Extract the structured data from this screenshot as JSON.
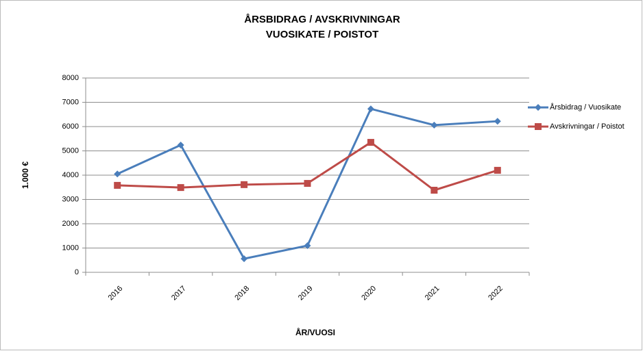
{
  "chart_data": {
    "type": "line",
    "title": [
      "ÅRSBIDRAG / AVSKRIVNINGAR",
      "VUOSIKATE / POISTOT"
    ],
    "x_label": "ÅR/VUOSI",
    "y_label": "1.000 €",
    "categories": [
      "2016",
      "2017",
      "2018",
      "2019",
      "2020",
      "2021",
      "2022"
    ],
    "series": [
      {
        "name": "Årsbidrag / Vuosikate",
        "color": "#4a7ebb",
        "marker": "diamond",
        "values": [
          4050,
          5240,
          560,
          1100,
          6730,
          6060,
          6220
        ]
      },
      {
        "name": "Avskrivningar / Poistot",
        "color": "#be4b48",
        "marker": "square",
        "values": [
          3580,
          3490,
          3610,
          3660,
          5350,
          3380,
          4200
        ]
      }
    ],
    "ylim": [
      0,
      8000
    ],
    "yticks": [
      0,
      1000,
      2000,
      3000,
      4000,
      5000,
      6000,
      7000,
      8000
    ],
    "grid": true,
    "legend": "right"
  }
}
